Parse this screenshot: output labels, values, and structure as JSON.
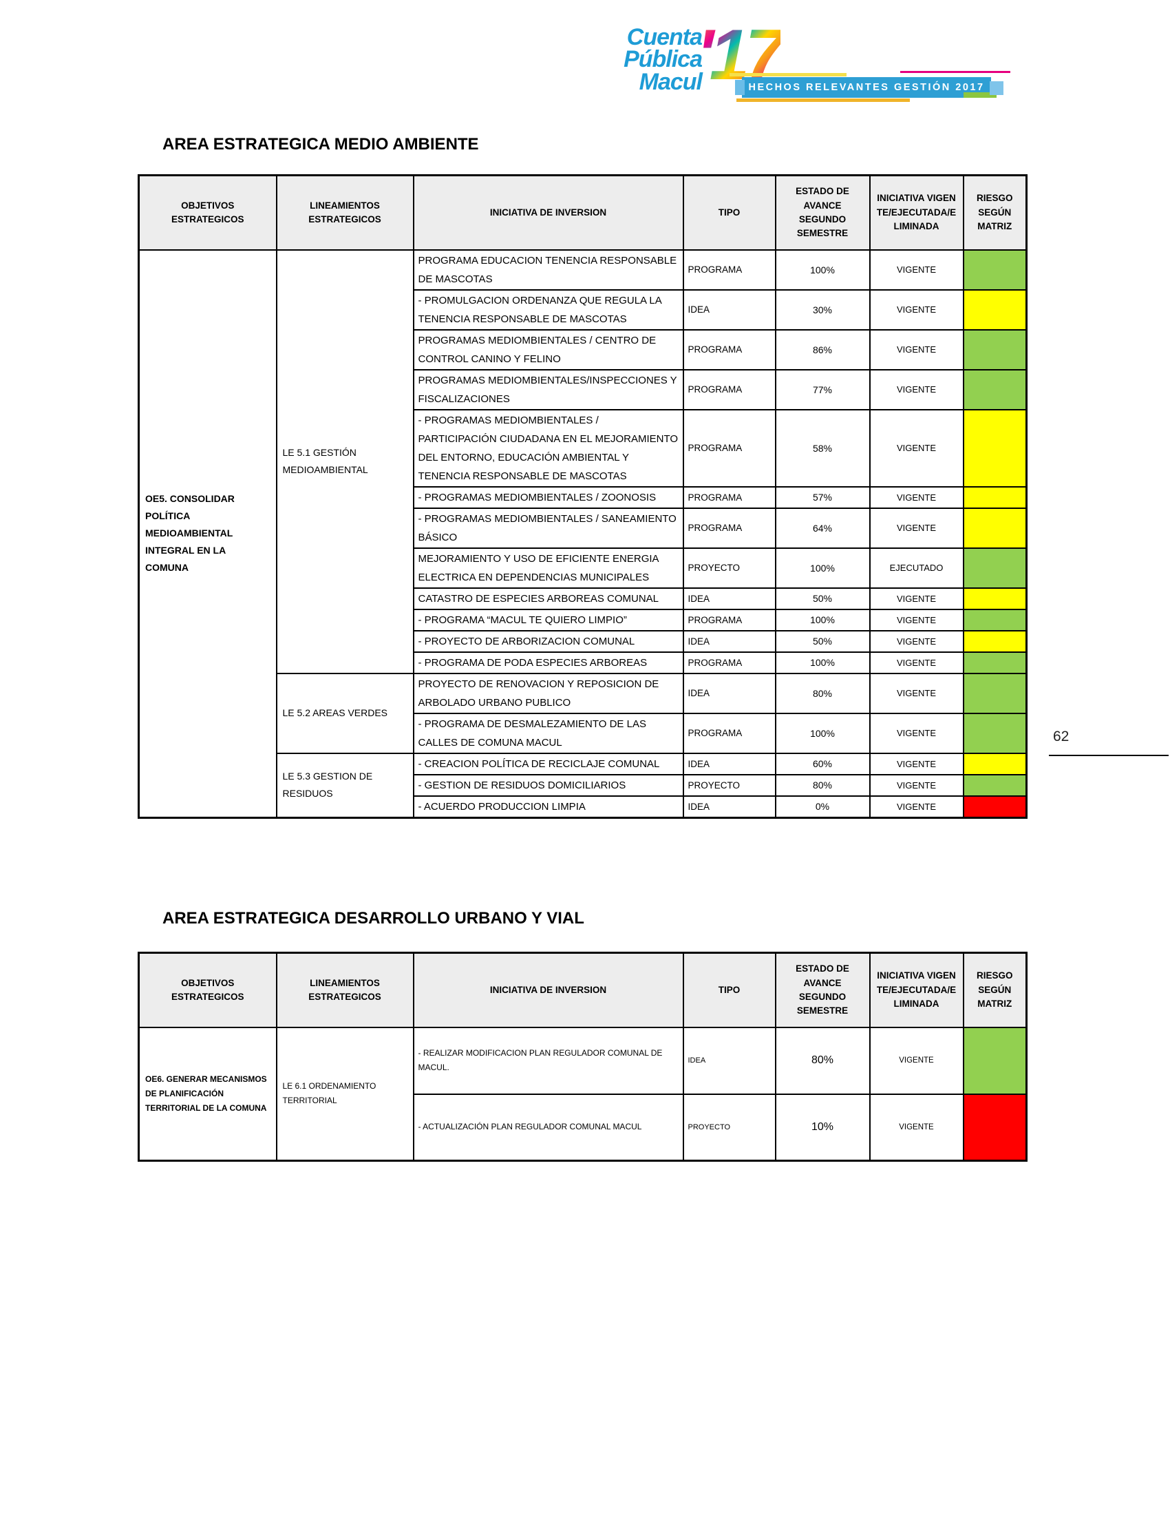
{
  "logo": {
    "line1": "Cuenta",
    "line2": "Pública",
    "line3": "Macul",
    "year": "'17",
    "brand_blue": "#1e9cd6"
  },
  "banner": {
    "text": "HECHOS RELEVANTES GESTIÓN 2017",
    "bar_color": "#2e9fd4",
    "accent_yellow": "#f5e04b",
    "accent_magenta": "#e6007e",
    "accent_gold": "#f0b429",
    "accent_green": "#8cc63f"
  },
  "page": {
    "number": "62"
  },
  "risk_colors": {
    "green": "#92D050",
    "yellow": "#FFFF00",
    "red": "#FF0000"
  },
  "tables": [
    {
      "title": "AREA ESTRATEGICA MEDIO AMBIENTE",
      "headers": [
        "OBJETIVOS ESTRATEGICOS",
        "LINEAMIENTOS ESTRATEGICOS",
        "INICIATIVA DE INVERSION",
        "TIPO",
        "ESTADO DE AVANCE SEGUNDO SEMESTRE",
        "INICIATIVA VIGENTE/EJECUTADA/ELIMINADA",
        "RIESGO SEGÚN MATRIZ"
      ],
      "objetivo": "OE5. CONSOLIDAR POLÍTICA MEDIOAMBIENTAL INTEGRAL EN LA COMUNA",
      "groups": [
        {
          "lineamiento": "LE 5.1 GESTIÓN MEDIOAMBIENTAL",
          "rows": [
            {
              "iniciativa": "PROGRAMA EDUCACION TENENCIA RESPONSABLE DE MASCOTAS",
              "tipo": "PROGRAMA",
              "avance": "100%",
              "estado": "VIGENTE",
              "riesgo": "green"
            },
            {
              "iniciativa": "- PROMULGACION ORDENANZA QUE REGULA LA TENENCIA RESPONSABLE DE MASCOTAS",
              "tipo": "IDEA",
              "avance": "30%",
              "estado": "VIGENTE",
              "riesgo": "yellow"
            },
            {
              "iniciativa": "PROGRAMAS MEDIOMBIENTALES / CENTRO DE CONTROL CANINO Y FELINO",
              "tipo": "PROGRAMA",
              "avance": "86%",
              "estado": "VIGENTE",
              "riesgo": "green"
            },
            {
              "iniciativa": "PROGRAMAS MEDIOMBIENTALES/INSPECCIONES Y FISCALIZACIONES",
              "tipo": "PROGRAMA",
              "avance": "77%",
              "estado": "VIGENTE",
              "riesgo": "green"
            },
            {
              "iniciativa": "- PROGRAMAS MEDIOMBIENTALES / PARTICIPACIÓN CIUDADANA EN EL MEJORAMIENTO DEL ENTORNO, EDUCACIÓN AMBIENTAL Y TENENCIA RESPONSABLE DE MASCOTAS",
              "tipo": "PROGRAMA",
              "avance": "58%",
              "estado": "VIGENTE",
              "riesgo": "yellow"
            },
            {
              "iniciativa": "- PROGRAMAS MEDIOMBIENTALES / ZOONOSIS",
              "tipo": "PROGRAMA",
              "avance": "57%",
              "estado": "VIGENTE",
              "riesgo": "yellow"
            },
            {
              "iniciativa": "- PROGRAMAS MEDIOMBIENTALES / SANEAMIENTO BÁSICO",
              "tipo": "PROGRAMA",
              "avance": "64%",
              "estado": "VIGENTE",
              "riesgo": "yellow"
            },
            {
              "iniciativa": "MEJORAMIENTO Y USO DE EFICIENTE ENERGIA ELECTRICA EN DEPENDENCIAS MUNICIPALES",
              "tipo": "PROYECTO",
              "avance": "100%",
              "estado": "EJECUTADO",
              "riesgo": "green"
            },
            {
              "iniciativa": "CATASTRO DE ESPECIES ARBOREAS COMUNAL",
              "tipo": "IDEA",
              "avance": "50%",
              "estado": "VIGENTE",
              "riesgo": "yellow"
            },
            {
              "iniciativa": "- PROGRAMA “MACUL TE QUIERO LIMPIO”",
              "tipo": "PROGRAMA",
              "avance": "100%",
              "estado": "VIGENTE",
              "riesgo": "green"
            },
            {
              "iniciativa": "- PROYECTO DE ARBORIZACION COMUNAL",
              "tipo": "IDEA",
              "avance": "50%",
              "estado": "VIGENTE",
              "riesgo": "yellow"
            },
            {
              "iniciativa": "- PROGRAMA DE PODA ESPECIES ARBOREAS",
              "tipo": "PROGRAMA",
              "avance": "100%",
              "estado": "VIGENTE",
              "riesgo": "green"
            }
          ]
        },
        {
          "lineamiento": "LE 5.2 AREAS VERDES",
          "rows": [
            {
              "iniciativa": "PROYECTO DE RENOVACION Y REPOSICION DE ARBOLADO URBANO PUBLICO",
              "tipo": "IDEA",
              "avance": "80%",
              "estado": "VIGENTE",
              "riesgo": "green"
            },
            {
              "iniciativa": "- PROGRAMA DE DESMALEZAMIENTO DE LAS CALLES DE COMUNA MACUL",
              "tipo": "PROGRAMA",
              "avance": "100%",
              "estado": "VIGENTE",
              "riesgo": "green"
            }
          ]
        },
        {
          "lineamiento": "LE 5.3 GESTION DE RESIDUOS",
          "rows": [
            {
              "iniciativa": "- CREACION POLÍTICA DE RECICLAJE COMUNAL",
              "tipo": "IDEA",
              "avance": "60%",
              "estado": "VIGENTE",
              "riesgo": "yellow"
            },
            {
              "iniciativa": "- GESTION DE RESIDUOS DOMICILIARIOS",
              "tipo": "PROYECTO",
              "avance": "80%",
              "estado": "VIGENTE",
              "riesgo": "green"
            },
            {
              "iniciativa": "- ACUERDO PRODUCCION LIMPIA",
              "tipo": "IDEA",
              "avance": "0%",
              "estado": "VIGENTE",
              "riesgo": "red"
            }
          ]
        }
      ]
    },
    {
      "title": "AREA ESTRATEGICA DESARROLLO URBANO Y VIAL",
      "headers": [
        "OBJETIVOS ESTRATEGICOS",
        "LINEAMIENTOS ESTRATEGICOS",
        "INICIATIVA DE INVERSION",
        "TIPO",
        "ESTADO DE AVANCE SEGUNDO SEMESTRE",
        "INICIATIVA VIGENTE/EJECUTADA/ELIMINADA",
        "RIESGO SEGÚN MATRIZ"
      ],
      "objetivo": "OE6. GENERAR MECANISMOS DE PLANIFICACIÓN TERRITORIAL DE LA COMUNA",
      "groups": [
        {
          "lineamiento": "LE 6.1 ORDENAMIENTO TERRITORIAL",
          "rows": [
            {
              "iniciativa": "- REALIZAR MODIFICACION PLAN REGULADOR COMUNAL DE MACUL.",
              "tipo": "IDEA",
              "avance": "80%",
              "estado": "VIGENTE",
              "riesgo": "green"
            },
            {
              "iniciativa": "- ACTUALIZACIÓN PLAN REGULADOR COMUNAL MACUL",
              "tipo": "PROYECTO",
              "avance": "10%",
              "estado": "VIGENTE",
              "riesgo": "red"
            }
          ]
        }
      ]
    }
  ]
}
